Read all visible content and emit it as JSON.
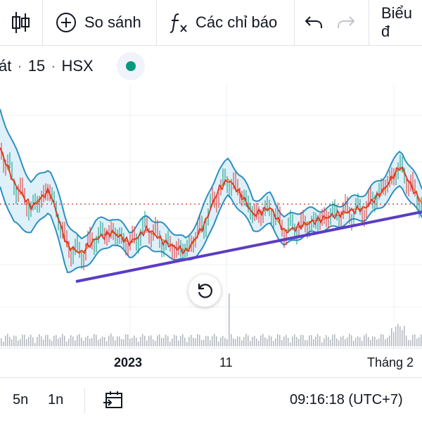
{
  "toolbar": {
    "compare_label": "So sánh",
    "indicators_label": "Các chỉ báo",
    "chart_type_label": "Biểu đ"
  },
  "symbol": {
    "name_fragment": "át",
    "interval": "15",
    "exchange": "HSX",
    "separator": "·",
    "status_color": "#089981"
  },
  "x_axis": {
    "labels": [
      "2023",
      "11",
      "Tháng 2"
    ]
  },
  "bottom_bar": {
    "range_5d": "5n",
    "range_1m": "1n",
    "time": "09:16:18 (UTC+7)"
  },
  "colors": {
    "band_line": "#2e8fbf",
    "band_fill": "#d6ecf7",
    "price_line": "#e03131",
    "basis_line": "#f08c00",
    "trend_line": "#5b3cc4",
    "price_level": "#c0392b",
    "volume": "#b2b5be"
  }
}
